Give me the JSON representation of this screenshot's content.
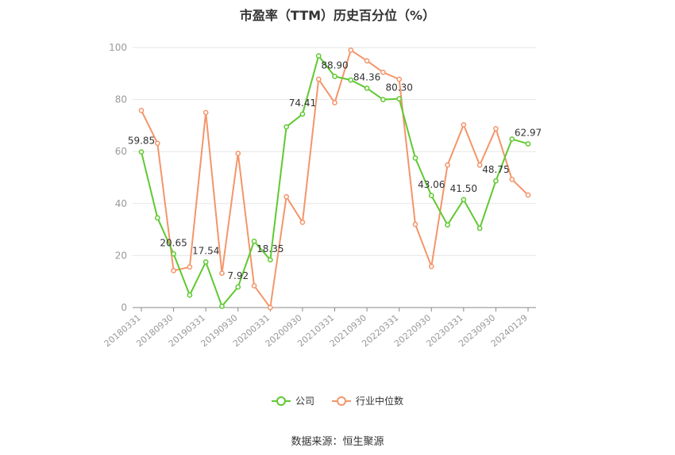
{
  "source": "数据来源：恒生聚源",
  "chart_data": {
    "type": "line",
    "title": "市盈率（TTM）历史百分位（%）",
    "ylim": [
      0,
      100
    ],
    "yticks": [
      0,
      20,
      40,
      60,
      80,
      100
    ],
    "grid": true,
    "legend_position": "bottom",
    "x": [
      "20180331",
      "20180630",
      "20180930",
      "20181231",
      "20190331",
      "20190630",
      "20190930",
      "20191231",
      "20200331",
      "20200630",
      "20200930",
      "20201231",
      "20210331",
      "20210630",
      "20210930",
      "20211231",
      "20220331",
      "20220630",
      "20220930",
      "20221231",
      "20230331",
      "20230630",
      "20230930",
      "20231231",
      "20240129"
    ],
    "xtick_labels": [
      "20180331",
      "20180930",
      "20190331",
      "20190930",
      "20200331",
      "20200930",
      "20210331",
      "20210930",
      "20220331",
      "20220930",
      "20230331",
      "20230930",
      "20240129"
    ],
    "series": [
      {
        "name": "公司",
        "color": "#5fc931",
        "values": [
          59.85,
          34.5,
          20.65,
          4.8,
          17.54,
          0.5,
          7.92,
          25.5,
          18.35,
          69.5,
          74.41,
          96.8,
          88.9,
          87.5,
          84.36,
          80.0,
          80.3,
          57.5,
          43.06,
          31.8,
          41.5,
          30.5,
          48.75,
          64.8,
          62.97
        ],
        "labels": {
          "0": "59.85",
          "2": "20.65",
          "4": "17.54",
          "6": "7.92",
          "8": "18.35",
          "10": "74.41",
          "12": "88.90",
          "14": "84.36",
          "16": "80.30",
          "18": "43.06",
          "20": "41.50",
          "22": "48.75",
          "24": "62.97"
        }
      },
      {
        "name": "行业中位数",
        "color": "#f4956a",
        "values": [
          75.8,
          63.2,
          14.2,
          15.6,
          75.0,
          13.2,
          59.3,
          8.4,
          0.0,
          42.6,
          32.8,
          87.8,
          78.8,
          99.0,
          94.9,
          90.5,
          87.8,
          32.0,
          15.8,
          54.8,
          70.3,
          54.8,
          68.8,
          49.3,
          43.3
        ]
      }
    ]
  }
}
